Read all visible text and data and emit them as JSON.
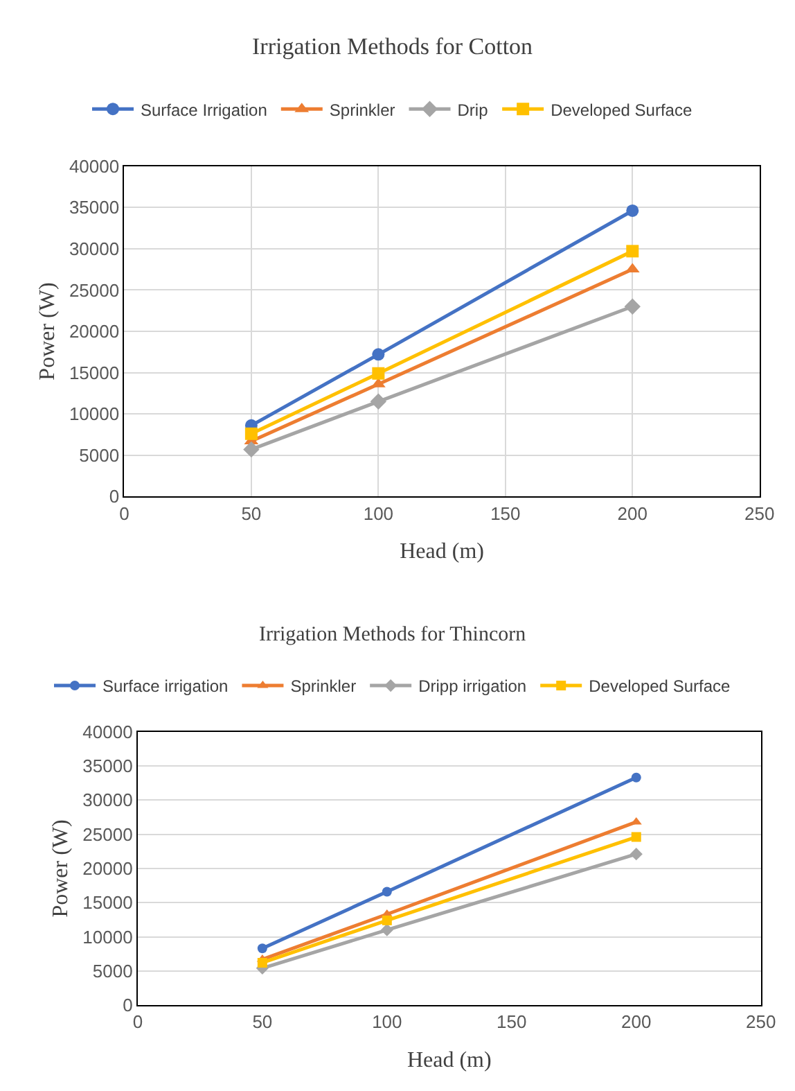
{
  "chart_data": [
    {
      "type": "line",
      "title": "Irrigation Methods for Cotton",
      "xlabel": "Head (m)",
      "ylabel": "Power (W)",
      "x": [
        50,
        100,
        200
      ],
      "xlim": [
        0,
        250
      ],
      "xticks": [
        0,
        50,
        100,
        150,
        200,
        250
      ],
      "ylim": [
        0,
        40000
      ],
      "yticks": [
        0,
        5000,
        10000,
        15000,
        20000,
        25000,
        30000,
        35000,
        40000
      ],
      "grid": true,
      "legend": "top",
      "line_style": "solid",
      "series": [
        {
          "name": "Surface Irrigation",
          "color": "#4472c4",
          "marker": "circle",
          "values": [
            8600,
            17200,
            34600
          ]
        },
        {
          "name": "Sprinkler",
          "color": "#ed7d31",
          "marker": "triangle",
          "values": [
            6700,
            13600,
            27500
          ]
        },
        {
          "name": "Drip",
          "color": "#a5a5a5",
          "marker": "diamond",
          "values": [
            5700,
            11500,
            23000
          ]
        },
        {
          "name": "Developed Surface",
          "color": "#ffc000",
          "marker": "square",
          "values": [
            7600,
            14900,
            29700
          ]
        }
      ]
    },
    {
      "type": "line",
      "title": "Irrigation Methods for Thincorn",
      "xlabel": "Head (m)",
      "ylabel": "Power (W)",
      "x": [
        50,
        100,
        200
      ],
      "xlim": [
        0,
        250
      ],
      "xticks": [
        0,
        50,
        100,
        150,
        200,
        250
      ],
      "ylim": [
        0,
        40000
      ],
      "yticks": [
        0,
        5000,
        10000,
        15000,
        20000,
        25000,
        30000,
        35000,
        40000
      ],
      "grid": "y",
      "legend": "top",
      "line_style": "solid",
      "series": [
        {
          "name": "Surface irrigation",
          "color": "#4472c4",
          "marker": "circle",
          "values": [
            8300,
            16600,
            33300
          ]
        },
        {
          "name": "Sprinkler",
          "color": "#ed7d31",
          "marker": "triangle",
          "values": [
            6700,
            13300,
            26800
          ]
        },
        {
          "name": "Dripp irrigation",
          "color": "#a5a5a5",
          "marker": "diamond",
          "values": [
            5400,
            11000,
            22100
          ]
        },
        {
          "name": "Developed Surface",
          "color": "#ffc000",
          "marker": "square",
          "values": [
            6200,
            12400,
            24600
          ]
        }
      ]
    }
  ]
}
